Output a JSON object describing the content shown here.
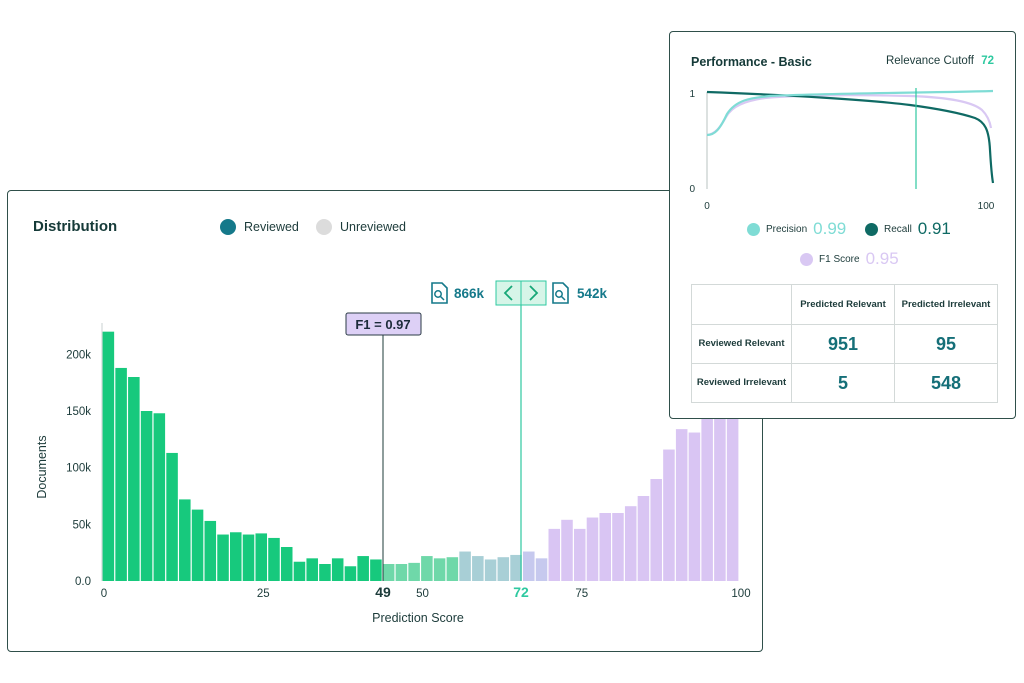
{
  "distribution": {
    "title": "Distribution",
    "legend": [
      {
        "label": "Reviewed",
        "color": "#15798a"
      },
      {
        "label": "Unreviewed",
        "color": "#dcdcdc"
      }
    ],
    "f1_badge": "F1 = 0.97",
    "f1_position_label": "49",
    "cutoff_position_label": "72",
    "nav": {
      "left_count": "866k",
      "right_count": "542k",
      "left_icon": "document-search-icon",
      "right_icon": "document-search-icon",
      "prev_icon": "chevron-left-icon",
      "next_icon": "chevron-right-icon"
    }
  },
  "chart_data": {
    "type": "bar",
    "title": "",
    "xlabel": "Prediction Score",
    "ylabel": "Documents",
    "xlim": [
      0,
      100
    ],
    "ylim": [
      0,
      225000
    ],
    "y_ticks": [
      "0.0",
      "50k",
      "100k",
      "150k",
      "200k"
    ],
    "x_ticks": [
      "0",
      "25",
      "50",
      "75",
      "100"
    ],
    "bin_colors": {
      "green": "#17c97d",
      "blue": "#a8cfd6",
      "purple": "#d9c5f3"
    },
    "values": [
      220000,
      188000,
      180000,
      150000,
      148000,
      113000,
      72000,
      63000,
      53000,
      41000,
      43000,
      41000,
      42000,
      38000,
      30000,
      17000,
      20000,
      15000,
      20000,
      13000,
      22000,
      19000,
      15000,
      15000,
      16000,
      22000,
      20000,
      21000,
      26000,
      22000,
      19000,
      21000,
      23000,
      26000,
      20000,
      46000,
      54000,
      46000,
      56000,
      60000,
      60000,
      66000,
      75000,
      90000,
      116000,
      134000,
      131000,
      143000,
      150000,
      151000
    ]
  },
  "performance": {
    "title": "Performance - Basic",
    "cutoff_label": "Relevance Cutoff",
    "cutoff_value": "72",
    "y_ticks": [
      "1",
      "0"
    ],
    "x_ticks": [
      "0",
      "100"
    ],
    "metrics": [
      {
        "label": "Precision",
        "value": "0.99",
        "color": "#7fdcd5"
      },
      {
        "label": "Recall",
        "value": "0.91",
        "color": "#0f6a64"
      },
      {
        "label": "F1 Score",
        "value": "0.95",
        "color": "#d9c8f3"
      }
    ],
    "confusion": {
      "col_headers": [
        "Predicted Relevant",
        "Predicted Irrelevant"
      ],
      "row_headers": [
        "Reviewed Relevant",
        "Reviewed Irrelevant"
      ],
      "values": [
        [
          "951",
          "95"
        ],
        [
          "5",
          "548"
        ]
      ]
    }
  }
}
